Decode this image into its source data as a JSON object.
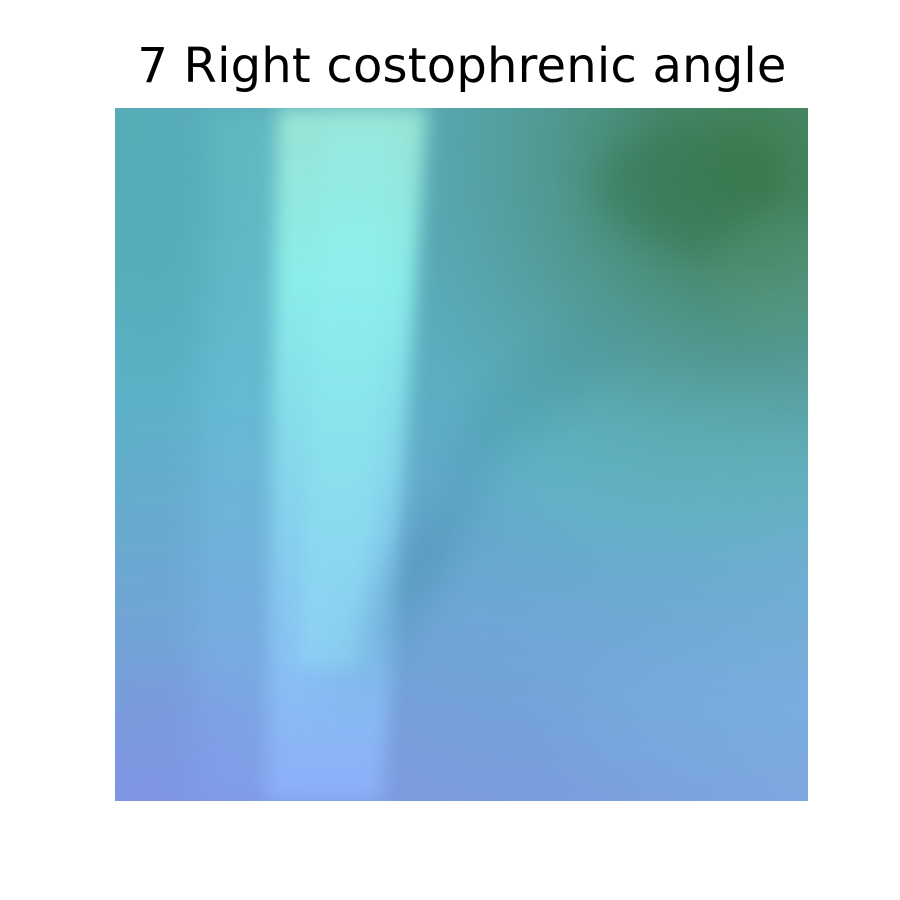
{
  "figure": {
    "title": "7 Right costophrenic angle"
  },
  "colors": {
    "background": "#ffffff",
    "title_text": "#000000",
    "image_teal": "#4fb0ae",
    "image_green": "#3f7a52",
    "image_cyan": "#8fe9ea",
    "image_blue": "#86a2e6"
  },
  "icons": {
    "image_panel": "image-panel"
  }
}
